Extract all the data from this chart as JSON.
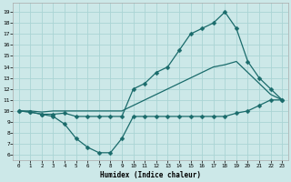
{
  "xlabel": "Humidex (Indice chaleur)",
  "bg_color": "#cce8e8",
  "grid_color": "#aad4d4",
  "line_color": "#1a6b6b",
  "x_ticks": [
    0,
    1,
    2,
    3,
    4,
    5,
    6,
    7,
    8,
    9,
    10,
    11,
    12,
    13,
    14,
    15,
    16,
    17,
    18,
    19,
    20,
    21,
    22,
    23
  ],
  "y_ticks": [
    6,
    7,
    8,
    9,
    10,
    11,
    12,
    13,
    14,
    15,
    16,
    17,
    18,
    19
  ],
  "ylim": [
    5.5,
    19.8
  ],
  "xlim": [
    -0.5,
    23.5
  ],
  "curve1_x": [
    0,
    1,
    2,
    3,
    4,
    5,
    6,
    7,
    8,
    9,
    10,
    11,
    12,
    13,
    14,
    15,
    16,
    17,
    18,
    19,
    20,
    21,
    22,
    23
  ],
  "curve1_y": [
    10.0,
    9.9,
    9.7,
    9.5,
    8.8,
    7.5,
    6.7,
    6.2,
    6.2,
    7.5,
    9.5,
    9.5,
    9.5,
    9.5,
    9.5,
    9.5,
    9.5,
    9.5,
    9.5,
    9.8,
    10.0,
    10.5,
    11.0,
    11.0
  ],
  "curve2_x": [
    0,
    1,
    2,
    3,
    4,
    5,
    6,
    7,
    8,
    9,
    10,
    11,
    12,
    13,
    14,
    15,
    16,
    17,
    18,
    19,
    20,
    21,
    22,
    23
  ],
  "curve2_y": [
    10.0,
    10.0,
    9.9,
    10.0,
    10.0,
    10.0,
    10.0,
    10.0,
    10.0,
    10.0,
    10.5,
    11.0,
    11.5,
    12.0,
    12.5,
    13.0,
    13.5,
    14.0,
    14.2,
    14.5,
    13.5,
    12.5,
    11.5,
    11.0
  ],
  "curve3_x": [
    0,
    1,
    2,
    3,
    4,
    5,
    6,
    7,
    8,
    9,
    10,
    11,
    12,
    13,
    14,
    15,
    16,
    17,
    18,
    19,
    20,
    21,
    22,
    23
  ],
  "curve3_y": [
    10.0,
    9.9,
    9.7,
    9.7,
    9.8,
    9.5,
    9.5,
    9.5,
    9.5,
    9.5,
    12.0,
    12.5,
    13.5,
    14.0,
    15.5,
    17.0,
    17.5,
    18.0,
    19.0,
    17.5,
    14.5,
    13.0,
    12.0,
    11.0
  ]
}
